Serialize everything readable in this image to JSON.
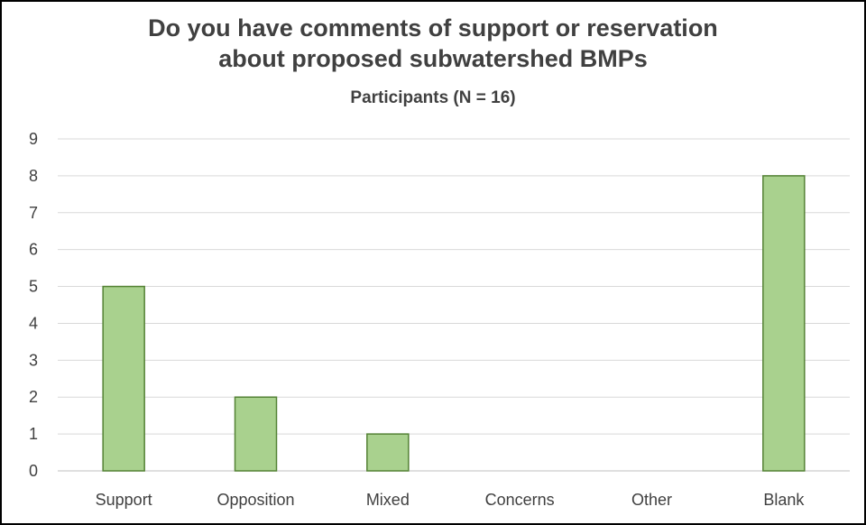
{
  "chart_data": {
    "type": "bar",
    "title_line1": "Do you have comments of support or reservation",
    "title_line2": "about proposed subwatershed BMPs",
    "subtitle": "Participants (N = 16)",
    "categories": [
      "Support",
      "Opposition",
      "Mixed",
      "Concerns",
      "Other",
      "Blank"
    ],
    "values": [
      5,
      2,
      1,
      0,
      0,
      8
    ],
    "ylim": [
      0,
      9
    ],
    "yticks": [
      "0",
      "1",
      "2",
      "3",
      "4",
      "5",
      "6",
      "7",
      "8",
      "9"
    ],
    "grid": true,
    "bar_fill": "#a9d18e",
    "bar_stroke": "#548235",
    "grid_color": "#d9d9d9",
    "text_color": "#404040"
  }
}
